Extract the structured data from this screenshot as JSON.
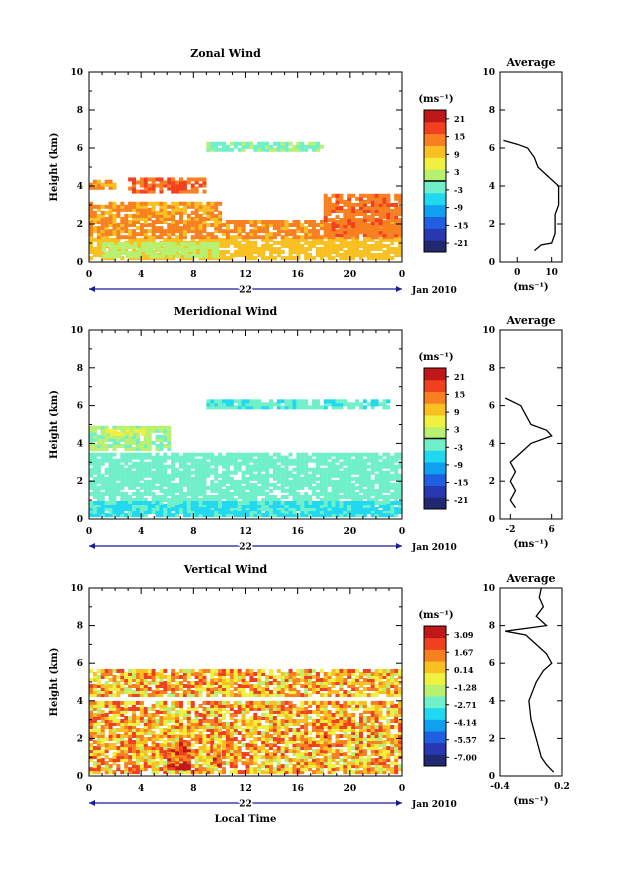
{
  "chart_data": [
    {
      "type": "heatmap",
      "title": "Zonal Wind",
      "ylabel": "Height (km)",
      "xlabel": "",
      "xticks": [
        "0",
        "4",
        "8",
        "12",
        "16",
        "20",
        "0"
      ],
      "yticks": [
        "0",
        "2",
        "4",
        "6",
        "8",
        "10"
      ],
      "xlim": [
        0,
        24
      ],
      "ylim": [
        0,
        10
      ],
      "date_label": "Jan 2010",
      "day_label": "22",
      "colorbar": {
        "unit": "(ms⁻¹)",
        "ticks": [
          "21",
          "15",
          "9",
          "3",
          "-3",
          "-9",
          "-15",
          "-21"
        ],
        "range": [
          -24,
          24
        ],
        "zero_contour": true
      },
      "regions": [
        {
          "x": [
            0,
            24
          ],
          "y": [
            0.1,
            1.2
          ],
          "value": 10
        },
        {
          "x": [
            0,
            24
          ],
          "y": [
            1.2,
            2.0
          ],
          "value": 13
        },
        {
          "x": [
            0,
            10
          ],
          "y": [
            2.0,
            3.0
          ],
          "value": 12
        },
        {
          "x": [
            18,
            24
          ],
          "y": [
            1.3,
            3.4
          ],
          "value": 15
        },
        {
          "x": [
            3,
            9
          ],
          "y": [
            3.6,
            4.3
          ],
          "value": 16
        },
        {
          "x": [
            0,
            2
          ],
          "y": [
            3.8,
            4.2
          ],
          "value": 12
        },
        {
          "x": [
            9,
            18
          ],
          "y": [
            5.8,
            6.2
          ],
          "value": -1
        },
        {
          "x": [
            1,
            10
          ],
          "y": [
            0.2,
            0.9
          ],
          "value": 2
        }
      ],
      "profile": {
        "title": "Average",
        "xlabel": "(ms⁻¹)",
        "xticks": [
          "0",
          "10"
        ],
        "xlim": [
          -5,
          13
        ],
        "heights": [
          0.6,
          0.9,
          1.0,
          1.5,
          2.0,
          2.5,
          3.0,
          3.5,
          4.0,
          4.5,
          5.0,
          5.5,
          6.0,
          6.2,
          6.4
        ],
        "values": [
          5,
          7,
          10,
          11,
          11,
          11,
          12,
          12,
          12,
          9,
          6,
          5,
          3,
          0,
          -4
        ]
      }
    },
    {
      "type": "heatmap",
      "title": "Meridional Wind",
      "ylabel": "Height (km)",
      "xlabel": "",
      "xticks": [
        "0",
        "4",
        "8",
        "12",
        "16",
        "20",
        "0"
      ],
      "yticks": [
        "0",
        "2",
        "4",
        "6",
        "8",
        "10"
      ],
      "xlim": [
        0,
        24
      ],
      "ylim": [
        0,
        10
      ],
      "date_label": "Jan 2010",
      "day_label": "22",
      "colorbar": {
        "unit": "(ms⁻¹)",
        "ticks": [
          "21",
          "15",
          "9",
          "3",
          "-3",
          "-9",
          "-15",
          "-21"
        ],
        "range": [
          -24,
          24
        ],
        "zero_contour": true
      },
      "regions": [
        {
          "x": [
            0,
            24
          ],
          "y": [
            0.1,
            3.4
          ],
          "value": -2
        },
        {
          "x": [
            0,
            24
          ],
          "y": [
            0.1,
            0.8
          ],
          "value": -5
        },
        {
          "x": [
            0,
            6
          ],
          "y": [
            3.6,
            4.8
          ],
          "value": 1
        },
        {
          "x": [
            1,
            4
          ],
          "y": [
            4.4,
            4.7
          ],
          "value": 5
        },
        {
          "x": [
            9,
            23
          ],
          "y": [
            5.8,
            6.2
          ],
          "value": -3
        }
      ],
      "profile": {
        "title": "Average",
        "xlabel": "(ms⁻¹)",
        "xticks": [
          "-2",
          "6"
        ],
        "xlim": [
          -4,
          8
        ],
        "heights": [
          0.6,
          1.0,
          1.5,
          2.0,
          2.5,
          3.0,
          3.5,
          4.0,
          4.4,
          4.7,
          5.0,
          5.5,
          6.0,
          6.4
        ],
        "values": [
          -1,
          -2,
          -1,
          -2,
          -1,
          -2,
          0,
          2,
          6,
          5,
          2,
          1,
          0,
          -3
        ]
      }
    },
    {
      "type": "heatmap",
      "title": "Vertical Wind",
      "ylabel": "Height (km)",
      "xlabel": "Local Time",
      "xticks": [
        "0",
        "4",
        "8",
        "12",
        "16",
        "20",
        "0"
      ],
      "yticks": [
        "0",
        "2",
        "4",
        "6",
        "8",
        "10"
      ],
      "xlim": [
        0,
        24
      ],
      "ylim": [
        0,
        10
      ],
      "date_label": "Jan 2010",
      "day_label": "22",
      "colorbar": {
        "unit": "(ms⁻¹)",
        "ticks": [
          "3.09",
          "1.67",
          "0.14",
          "-1.28",
          "-2.71",
          "-4.14",
          "-5.57",
          "-7.00"
        ],
        "range": [
          -7.5,
          3.6
        ],
        "zero_contour": false
      },
      "regions": [
        {
          "x": [
            0,
            24
          ],
          "y": [
            0.1,
            3.8
          ],
          "value": 0.6
        },
        {
          "x": [
            0,
            24
          ],
          "y": [
            4.2,
            5.6
          ],
          "value": 0.6
        },
        {
          "x": [
            6,
            7.5
          ],
          "y": [
            0.3,
            1.6
          ],
          "value": 2.3
        },
        {
          "x": [
            9.5,
            10
          ],
          "y": [
            0.5,
            1.6
          ],
          "value": 1.8
        },
        {
          "x": [
            18,
            18.5
          ],
          "y": [
            1.2,
            2.2
          ],
          "value": 1.8
        }
      ],
      "profile": {
        "title": "Average",
        "xlabel": "(ms⁻¹)",
        "xticks": [
          "-0.4",
          "0.2"
        ],
        "xlim": [
          -0.4,
          0.2
        ],
        "heights": [
          0.2,
          0.6,
          1.0,
          2.0,
          3.0,
          4.0,
          5.0,
          5.6,
          6.0,
          6.5,
          7.0,
          7.5,
          7.7,
          8.0,
          8.5,
          9.0,
          9.5,
          10.0
        ],
        "values": [
          0.12,
          0.05,
          0.0,
          -0.05,
          -0.1,
          -0.12,
          -0.05,
          0.02,
          0.1,
          0.05,
          -0.05,
          -0.15,
          -0.35,
          0.05,
          -0.05,
          0.02,
          -0.02,
          0.0
        ]
      }
    }
  ]
}
